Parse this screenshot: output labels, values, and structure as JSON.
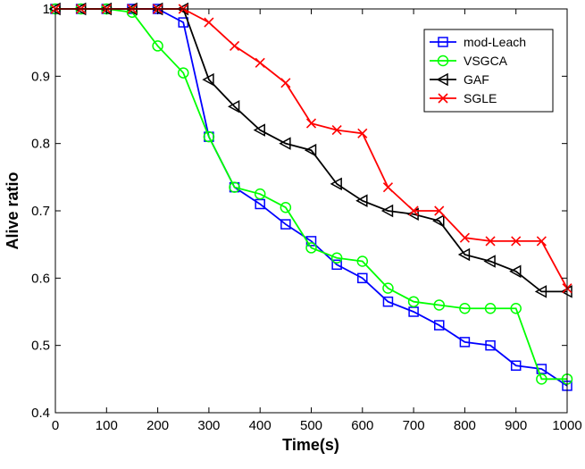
{
  "chart_data": {
    "type": "line",
    "title": "",
    "xlabel": "Time(s)",
    "ylabel": "Alive ratio",
    "xlim": [
      0,
      1000
    ],
    "ylim": [
      0.4,
      1.0
    ],
    "xticks": [
      0,
      100,
      200,
      300,
      400,
      500,
      600,
      700,
      800,
      900,
      1000
    ],
    "yticks": [
      0.4,
      0.5,
      0.6,
      0.7,
      0.8,
      0.9,
      1.0
    ],
    "xtick_labels": [
      "0",
      "100",
      "200",
      "300",
      "400",
      "500",
      "600",
      "700",
      "800",
      "900",
      "1000"
    ],
    "ytick_labels": [
      "0.4",
      "0.5",
      "0.6",
      "0.7",
      "0.8",
      "0.9",
      "1"
    ],
    "grid": false,
    "legend_position": "top-right",
    "x": [
      0,
      50,
      100,
      150,
      200,
      250,
      300,
      350,
      400,
      450,
      500,
      550,
      600,
      650,
      700,
      750,
      800,
      850,
      900,
      950,
      1000
    ],
    "series": [
      {
        "name": "mod-Leach",
        "color": "#0000ff",
        "marker": "square",
        "values": [
          1.0,
          1.0,
          1.0,
          1.0,
          1.0,
          0.98,
          0.81,
          0.735,
          0.71,
          0.68,
          0.655,
          0.62,
          0.6,
          0.565,
          0.55,
          0.53,
          0.505,
          0.5,
          0.47,
          0.465,
          0.44
        ]
      },
      {
        "name": "VSGCA",
        "color": "#00ff00",
        "marker": "circle",
        "values": [
          1.0,
          1.0,
          1.0,
          0.995,
          0.945,
          0.905,
          0.81,
          0.735,
          0.725,
          0.705,
          0.645,
          0.63,
          0.625,
          0.585,
          0.565,
          0.56,
          0.555,
          0.555,
          0.555,
          0.45,
          0.45
        ]
      },
      {
        "name": "GAF",
        "color": "#000000",
        "marker": "triangle-left",
        "values": [
          1.0,
          1.0,
          1.0,
          1.0,
          1.0,
          1.0,
          0.895,
          0.855,
          0.82,
          0.8,
          0.79,
          0.74,
          0.715,
          0.7,
          0.695,
          0.685,
          0.635,
          0.625,
          0.61,
          0.58,
          0.58
        ]
      },
      {
        "name": "SGLE",
        "color": "#ff0000",
        "marker": "x",
        "values": [
          1.0,
          1.0,
          1.0,
          1.0,
          1.0,
          1.0,
          0.98,
          0.945,
          0.92,
          0.89,
          0.83,
          0.82,
          0.815,
          0.735,
          0.7,
          0.7,
          0.66,
          0.655,
          0.655,
          0.655,
          0.585
        ]
      }
    ]
  }
}
